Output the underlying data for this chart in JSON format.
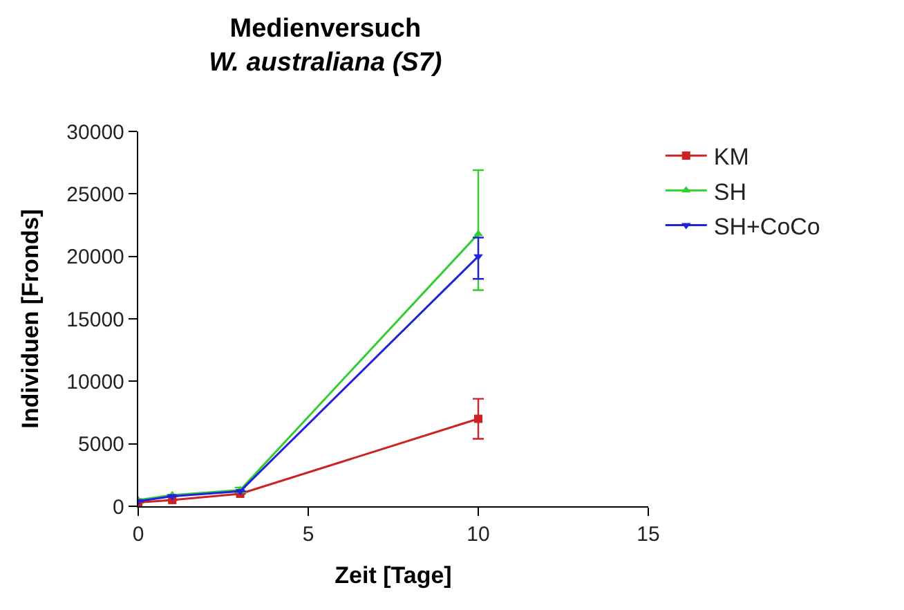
{
  "chart_data": {
    "type": "line",
    "title": "Medienversuch",
    "subtitle": "W. australiana (S7)",
    "xlabel": "Zeit [Tage]",
    "ylabel": "Individuen [Fronds]",
    "x": [
      0,
      1,
      3,
      10
    ],
    "series": [
      {
        "name": "KM",
        "color": "#cc2222",
        "marker": "square",
        "values": [
          300,
          500,
          1000,
          7000
        ],
        "errors": [
          null,
          null,
          null,
          [
            5400,
            8600
          ]
        ]
      },
      {
        "name": "SH",
        "color": "#33cc33",
        "marker": "triangle",
        "values": [
          500,
          900,
          1300,
          21800
        ],
        "errors": [
          null,
          null,
          [
            1100,
            1500
          ],
          [
            17300,
            26900
          ]
        ]
      },
      {
        "name": "SH+CoCo",
        "color": "#2222dd",
        "marker": "triangle-down",
        "values": [
          400,
          800,
          1200,
          20000
        ],
        "errors": [
          null,
          null,
          null,
          [
            18200,
            21500
          ]
        ]
      }
    ],
    "xlim": [
      0,
      15
    ],
    "xticks": [
      0,
      5,
      10,
      15
    ],
    "ylim": [
      0,
      30000
    ],
    "yticks": [
      0,
      5000,
      10000,
      15000,
      20000,
      25000,
      30000
    ],
    "legend": "top right",
    "line_style": "solid"
  }
}
